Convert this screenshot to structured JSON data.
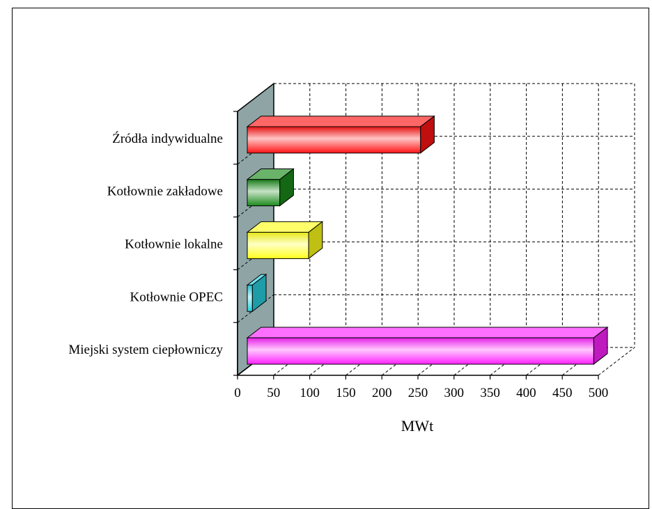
{
  "chart_data": {
    "type": "bar",
    "orientation": "horizontal",
    "three_d": true,
    "categories": [
      "Źródła indywidualne",
      "Kotłownie zakładowe",
      "Kotłownie lokalne",
      "Kotłownie OPEC",
      "Miejski system ciepłowniczy"
    ],
    "values": [
      240,
      45,
      85,
      7,
      480
    ],
    "colors": [
      "#ff1414",
      "#1a8a1a",
      "#ffff1a",
      "#28d0e0",
      "#ff22ff"
    ],
    "xlabel": "MWt",
    "xlim": [
      0,
      500
    ],
    "xticks": [
      "0",
      "50",
      "100",
      "150",
      "200",
      "250",
      "300",
      "350",
      "400",
      "450",
      "500"
    ],
    "grid": true,
    "wall_color": "#8fa5a5"
  }
}
